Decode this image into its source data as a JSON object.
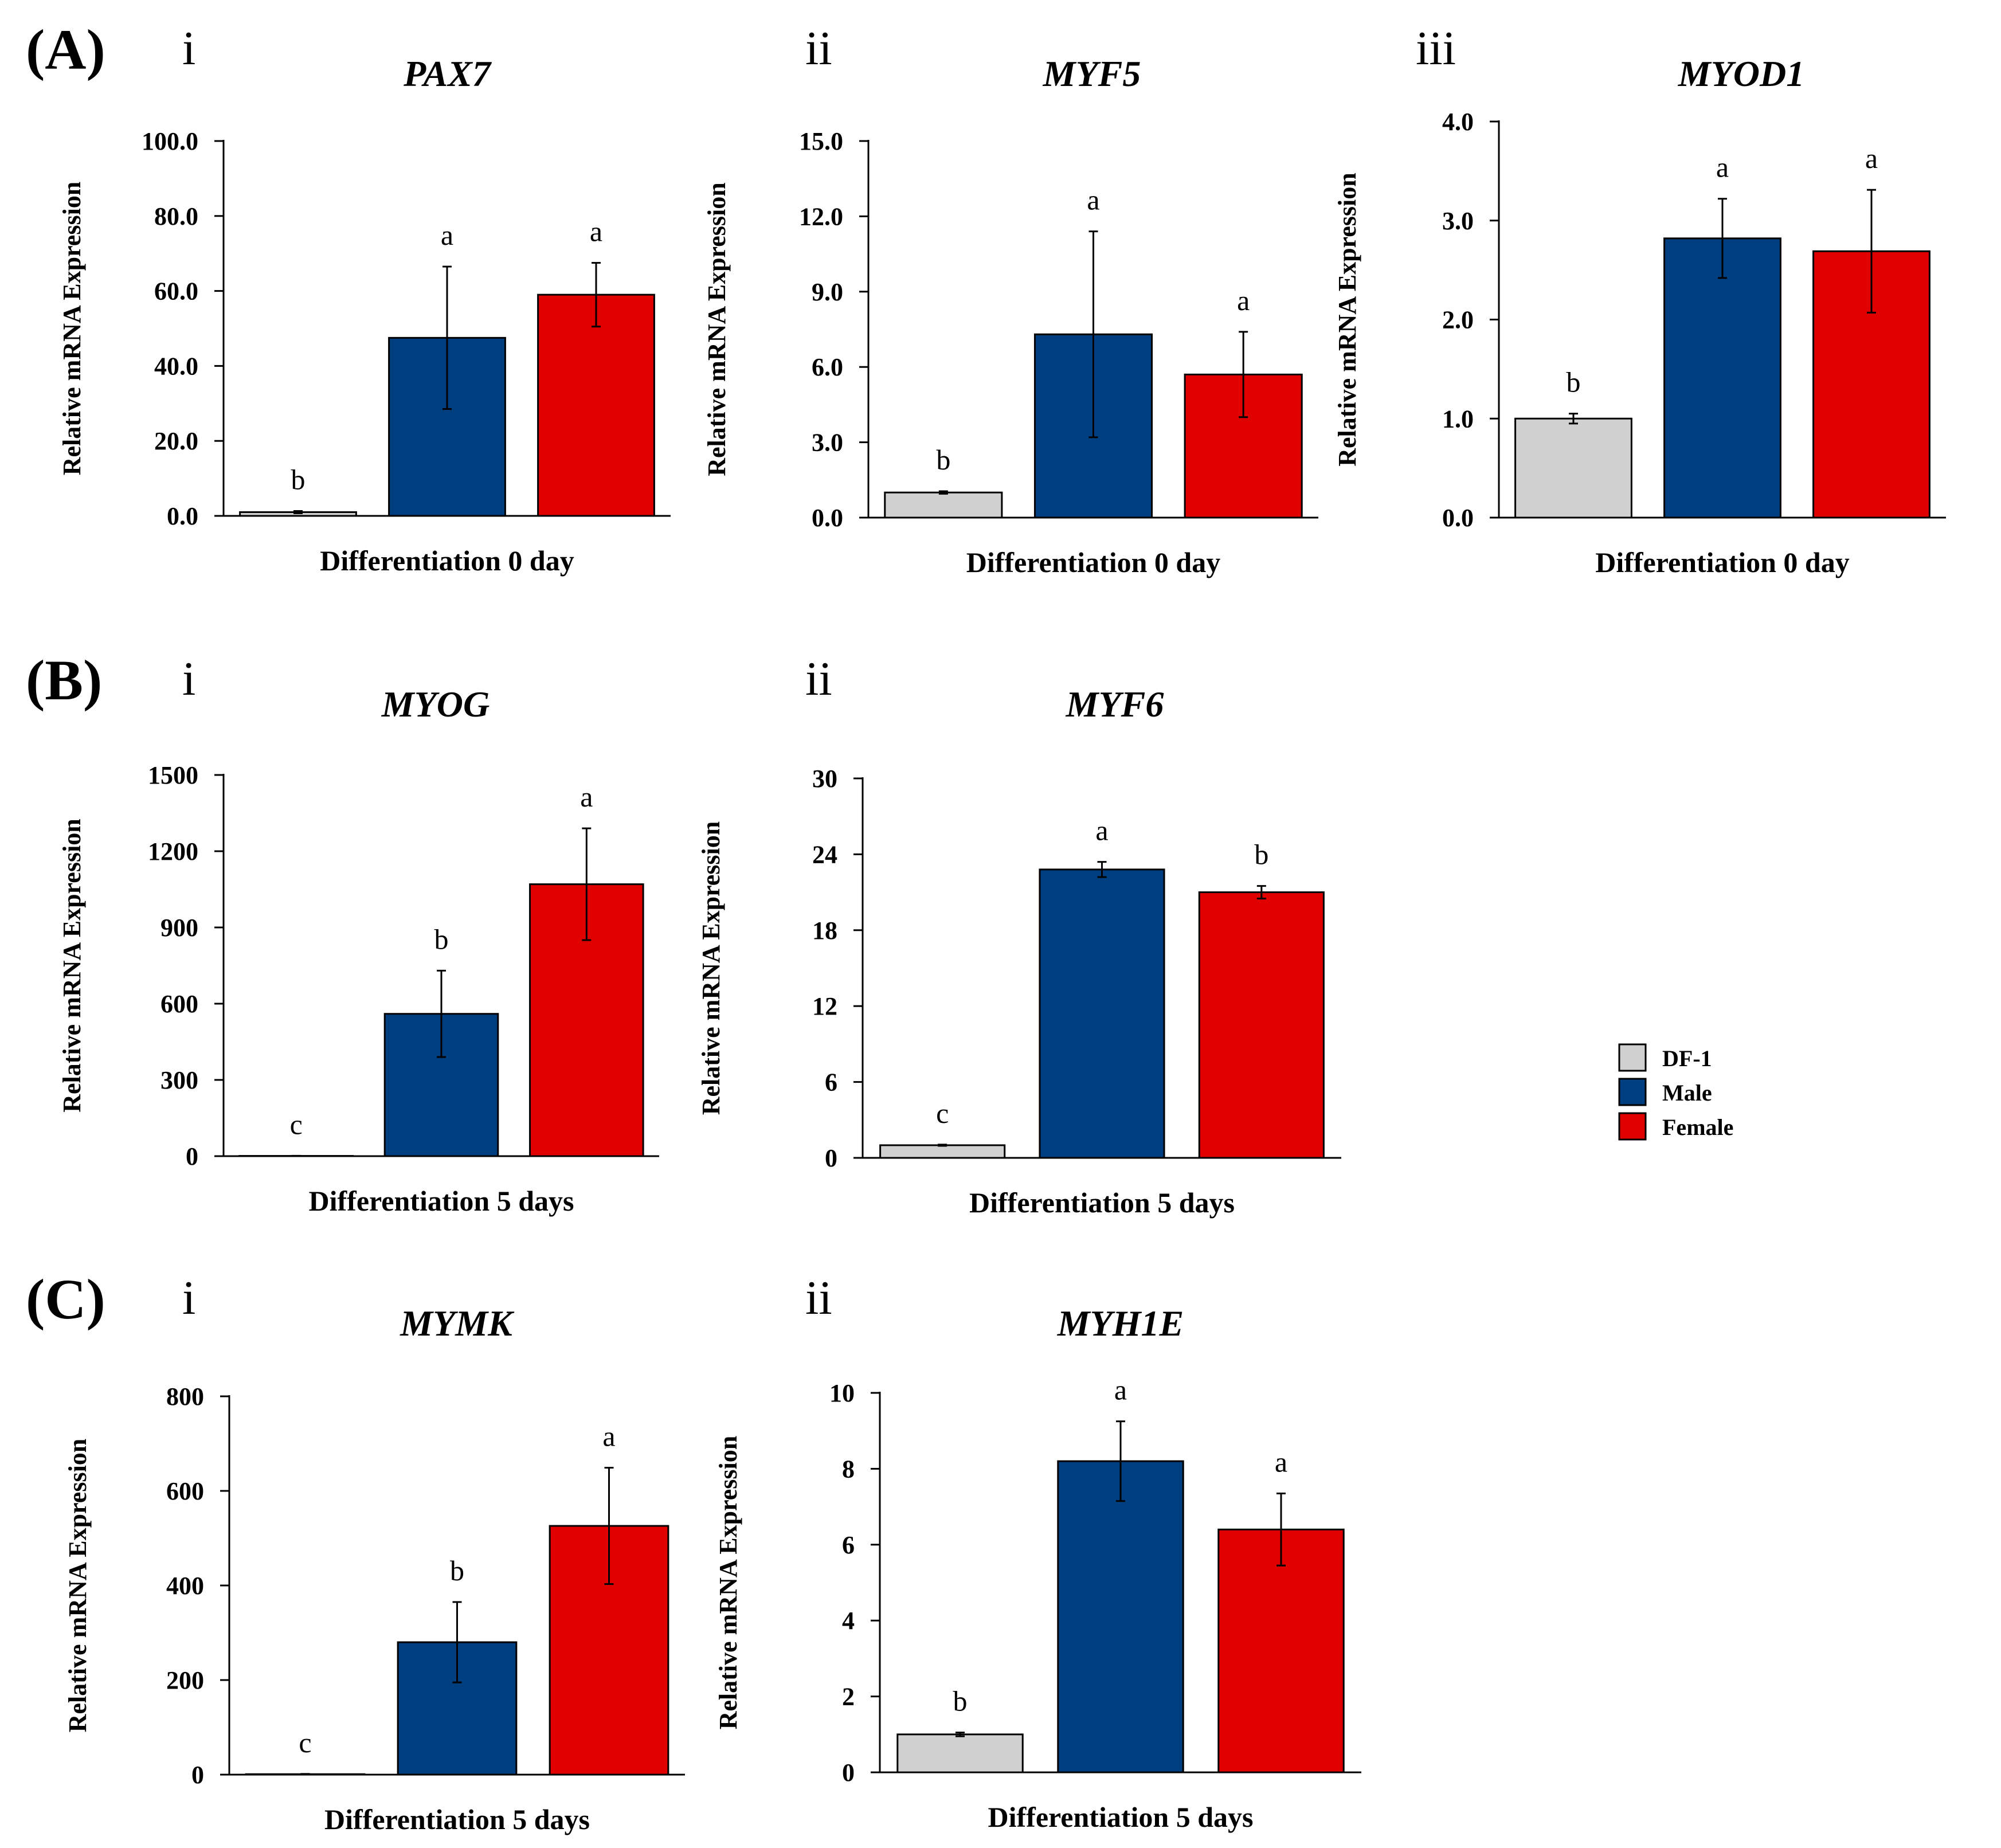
{
  "legend": [
    {
      "label": "DF-1",
      "color": "#d0d0d0"
    },
    {
      "label": "Male",
      "color": "#003f7f"
    },
    {
      "label": "Female",
      "color": "#e00000"
    }
  ],
  "chart_data": [
    {
      "type": "bar",
      "panel": "(A)",
      "sub": "i",
      "title": "PAX7",
      "ylabel": "Relative mRNA Expression",
      "xlabel": "Differentiation 0 day",
      "categories": [
        "DF-1",
        "Male",
        "Female"
      ],
      "values": [
        1,
        47.5,
        59
      ],
      "errors": [
        0.3,
        19,
        8.5
      ],
      "sig": [
        "b",
        "a",
        "a"
      ],
      "ylim": [
        0,
        100
      ],
      "ticks": [
        "0.0",
        "20.0",
        "40.0",
        "60.0",
        "80.0",
        "100.0"
      ]
    },
    {
      "type": "bar",
      "panel": "",
      "sub": "ii",
      "title": "MYF5",
      "ylabel": "Relative mRNA Expression",
      "xlabel": "Differentiation 0 day",
      "categories": [
        "DF-1",
        "Male",
        "Female"
      ],
      "values": [
        1,
        7.3,
        5.7
      ],
      "errors": [
        0.05,
        4.1,
        1.7
      ],
      "sig": [
        "b",
        "a",
        "a"
      ],
      "ylim": [
        0,
        15
      ],
      "ticks": [
        "0.0",
        "3.0",
        "6.0",
        "9.0",
        "12.0",
        "15.0"
      ]
    },
    {
      "type": "bar",
      "panel": "",
      "sub": "iii",
      "title": "MYOD1",
      "ylabel": "Relative mRNA Expression",
      "xlabel": "Differentiation 0 day",
      "categories": [
        "DF-1",
        "Male",
        "Female"
      ],
      "values": [
        1,
        2.82,
        2.69
      ],
      "errors": [
        0.05,
        0.4,
        0.62
      ],
      "sig": [
        "b",
        "a",
        "a"
      ],
      "ylim": [
        0,
        4
      ],
      "ticks": [
        "0.0",
        "1.0",
        "2.0",
        "3.0",
        "4.0"
      ]
    },
    {
      "type": "bar",
      "panel": "(B)",
      "sub": "i",
      "title": "MYOG",
      "ylabel": "Relative mRNA Expression",
      "xlabel": "Differentiation 5 days",
      "categories": [
        "DF-1",
        "Male",
        "Female"
      ],
      "values": [
        1,
        560,
        1070
      ],
      "errors": [
        0.5,
        170,
        220
      ],
      "sig": [
        "c",
        "b",
        "a"
      ],
      "ylim": [
        0,
        1500
      ],
      "ticks": [
        "0",
        "300",
        "600",
        "900",
        "1200",
        "1500"
      ]
    },
    {
      "type": "bar",
      "panel": "",
      "sub": "ii",
      "title": "MYF6",
      "ylabel": "Relative mRNA Expression",
      "xlabel": "Differentiation 5 days",
      "categories": [
        "DF-1",
        "Male",
        "Female"
      ],
      "values": [
        1,
        22.8,
        21
      ],
      "errors": [
        0.05,
        0.6,
        0.5
      ],
      "sig": [
        "c",
        "a",
        "b"
      ],
      "ylim": [
        0,
        30
      ],
      "ticks": [
        "0",
        "6",
        "12",
        "18",
        "24",
        "30"
      ]
    },
    {
      "type": "bar",
      "panel": "(C)",
      "sub": "i",
      "title": "MYMK",
      "ylabel": "Relative mRNA Expression",
      "xlabel": "Differentiation 5 days",
      "categories": [
        "DF-1",
        "Male",
        "Female"
      ],
      "values": [
        1,
        280,
        526
      ],
      "errors": [
        0.5,
        85,
        123
      ],
      "sig": [
        "c",
        "b",
        "a"
      ],
      "ylim": [
        0,
        800
      ],
      "ticks": [
        "0",
        "200",
        "400",
        "600",
        "800"
      ]
    },
    {
      "type": "bar",
      "panel": "",
      "sub": "ii",
      "title": "MYH1E",
      "ylabel": "Relative mRNA Expression",
      "xlabel": "Differentiation 5 days",
      "categories": [
        "DF-1",
        "Male",
        "Female"
      ],
      "values": [
        1,
        8.2,
        6.4
      ],
      "errors": [
        0.05,
        1.05,
        0.95
      ],
      "sig": [
        "b",
        "a",
        "a"
      ],
      "ylim": [
        0,
        10
      ],
      "ticks": [
        "0",
        "2",
        "4",
        "6",
        "8",
        "10"
      ]
    }
  ]
}
